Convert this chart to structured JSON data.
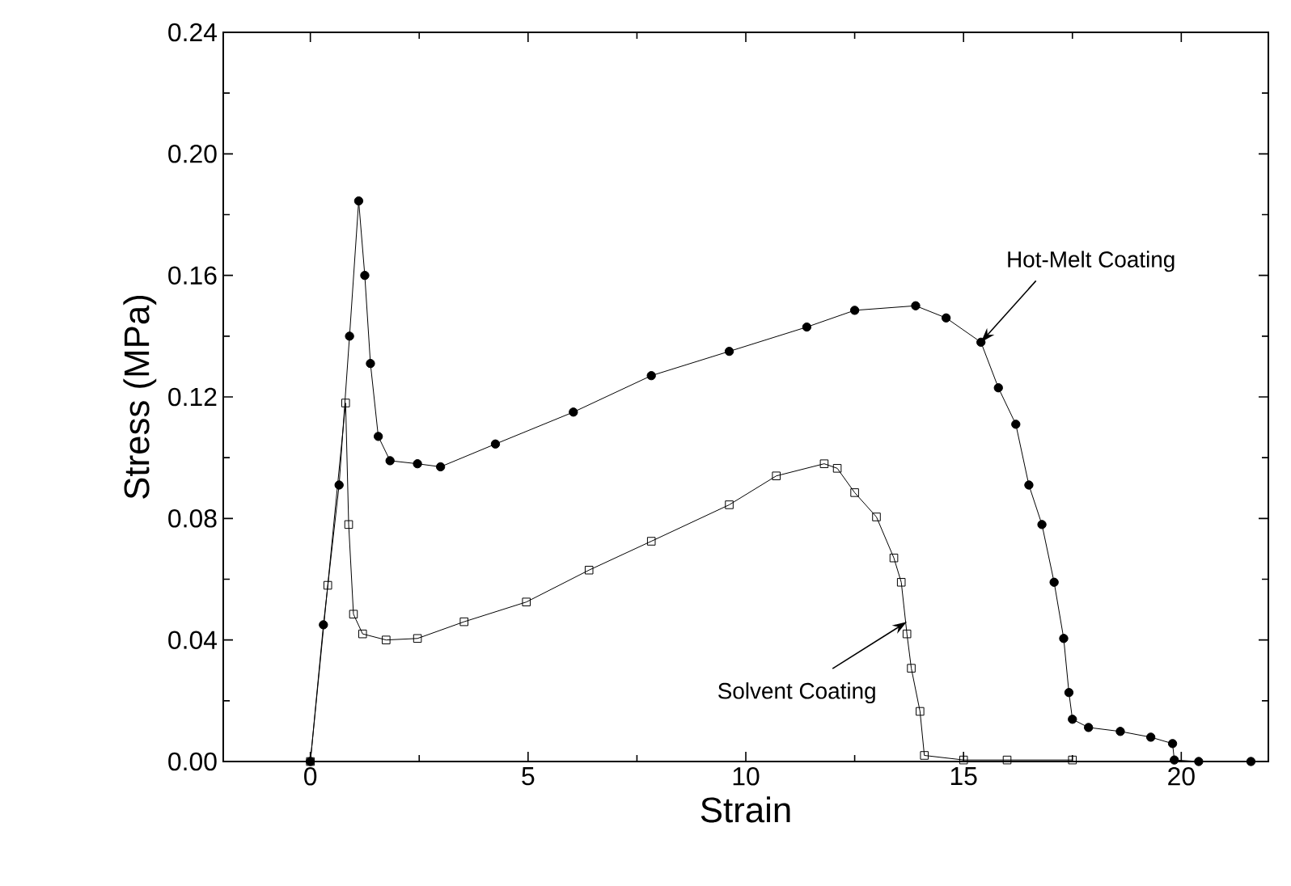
{
  "chart_data": {
    "type": "line",
    "xlabel": "Strain",
    "ylabel": "Stress (MPa)",
    "xlim": [
      -2,
      22
    ],
    "ylim": [
      0,
      0.24
    ],
    "xticks": [
      0,
      5,
      10,
      15,
      20
    ],
    "yticks": [
      {
        "value": 0,
        "label": "0.00"
      },
      {
        "value": 0.04,
        "label": "0.04"
      },
      {
        "value": 0.08,
        "label": "0.08"
      },
      {
        "value": 0.12,
        "label": "0.12"
      },
      {
        "value": 0.16,
        "label": "0.16"
      },
      {
        "value": 0.2,
        "label": "0.20"
      },
      {
        "value": 0.24,
        "label": "0.24"
      }
    ],
    "grid": false,
    "series": [
      {
        "color": "#000000",
        "marker": "circle",
        "x": [
          0,
          0.3,
          0.66,
          0.9,
          1.11,
          1.25,
          1.38,
          1.56,
          1.83,
          2.46,
          2.99,
          4.25,
          6.04,
          7.83,
          9.62,
          11.4,
          12.5,
          13.9,
          14.6,
          15.4,
          15.8,
          16.2,
          16.5,
          16.8,
          17.08,
          17.3,
          17.42,
          17.5,
          17.87,
          18.6,
          19.3,
          19.8,
          19.84,
          20.4,
          21.6
        ],
        "values": [
          0,
          0.045,
          0.091,
          0.14,
          0.1845,
          0.16,
          0.131,
          0.107,
          0.099,
          0.098,
          0.097,
          0.1045,
          0.115,
          0.127,
          0.135,
          0.143,
          0.1485,
          0.15,
          0.146,
          0.138,
          0.123,
          0.111,
          0.091,
          0.078,
          0.059,
          0.0405,
          0.0227,
          0.0139,
          0.0112,
          0.0099,
          0.008,
          0.0059,
          0.0005,
          0,
          0
        ]
      },
      {
        "color": "#000000",
        "marker": "square",
        "x": [
          0,
          0.4,
          0.81,
          0.88,
          0.99,
          1.2,
          1.74,
          2.46,
          3.53,
          4.96,
          6.4,
          7.83,
          9.62,
          10.7,
          11.8,
          12.1,
          12.5,
          13.0,
          13.4,
          13.57,
          13.7,
          13.8,
          14.0,
          14.1,
          15.0,
          16.0,
          17.5
        ],
        "values": [
          0,
          0.058,
          0.118,
          0.078,
          0.0485,
          0.042,
          0.04,
          0.0405,
          0.046,
          0.0525,
          0.063,
          0.0725,
          0.0845,
          0.094,
          0.098,
          0.0965,
          0.0885,
          0.0805,
          0.067,
          0.059,
          0.042,
          0.0307,
          0.0165,
          0.002,
          0.0005,
          0.0005,
          0.0005
        ]
      }
    ],
    "annotations": [
      {
        "text": "Hot-Melt Coating",
        "x": 15.4,
        "y": 0.138
      },
      {
        "text": "Solvent Coating",
        "x": 13.7,
        "y": 0.046
      }
    ]
  }
}
